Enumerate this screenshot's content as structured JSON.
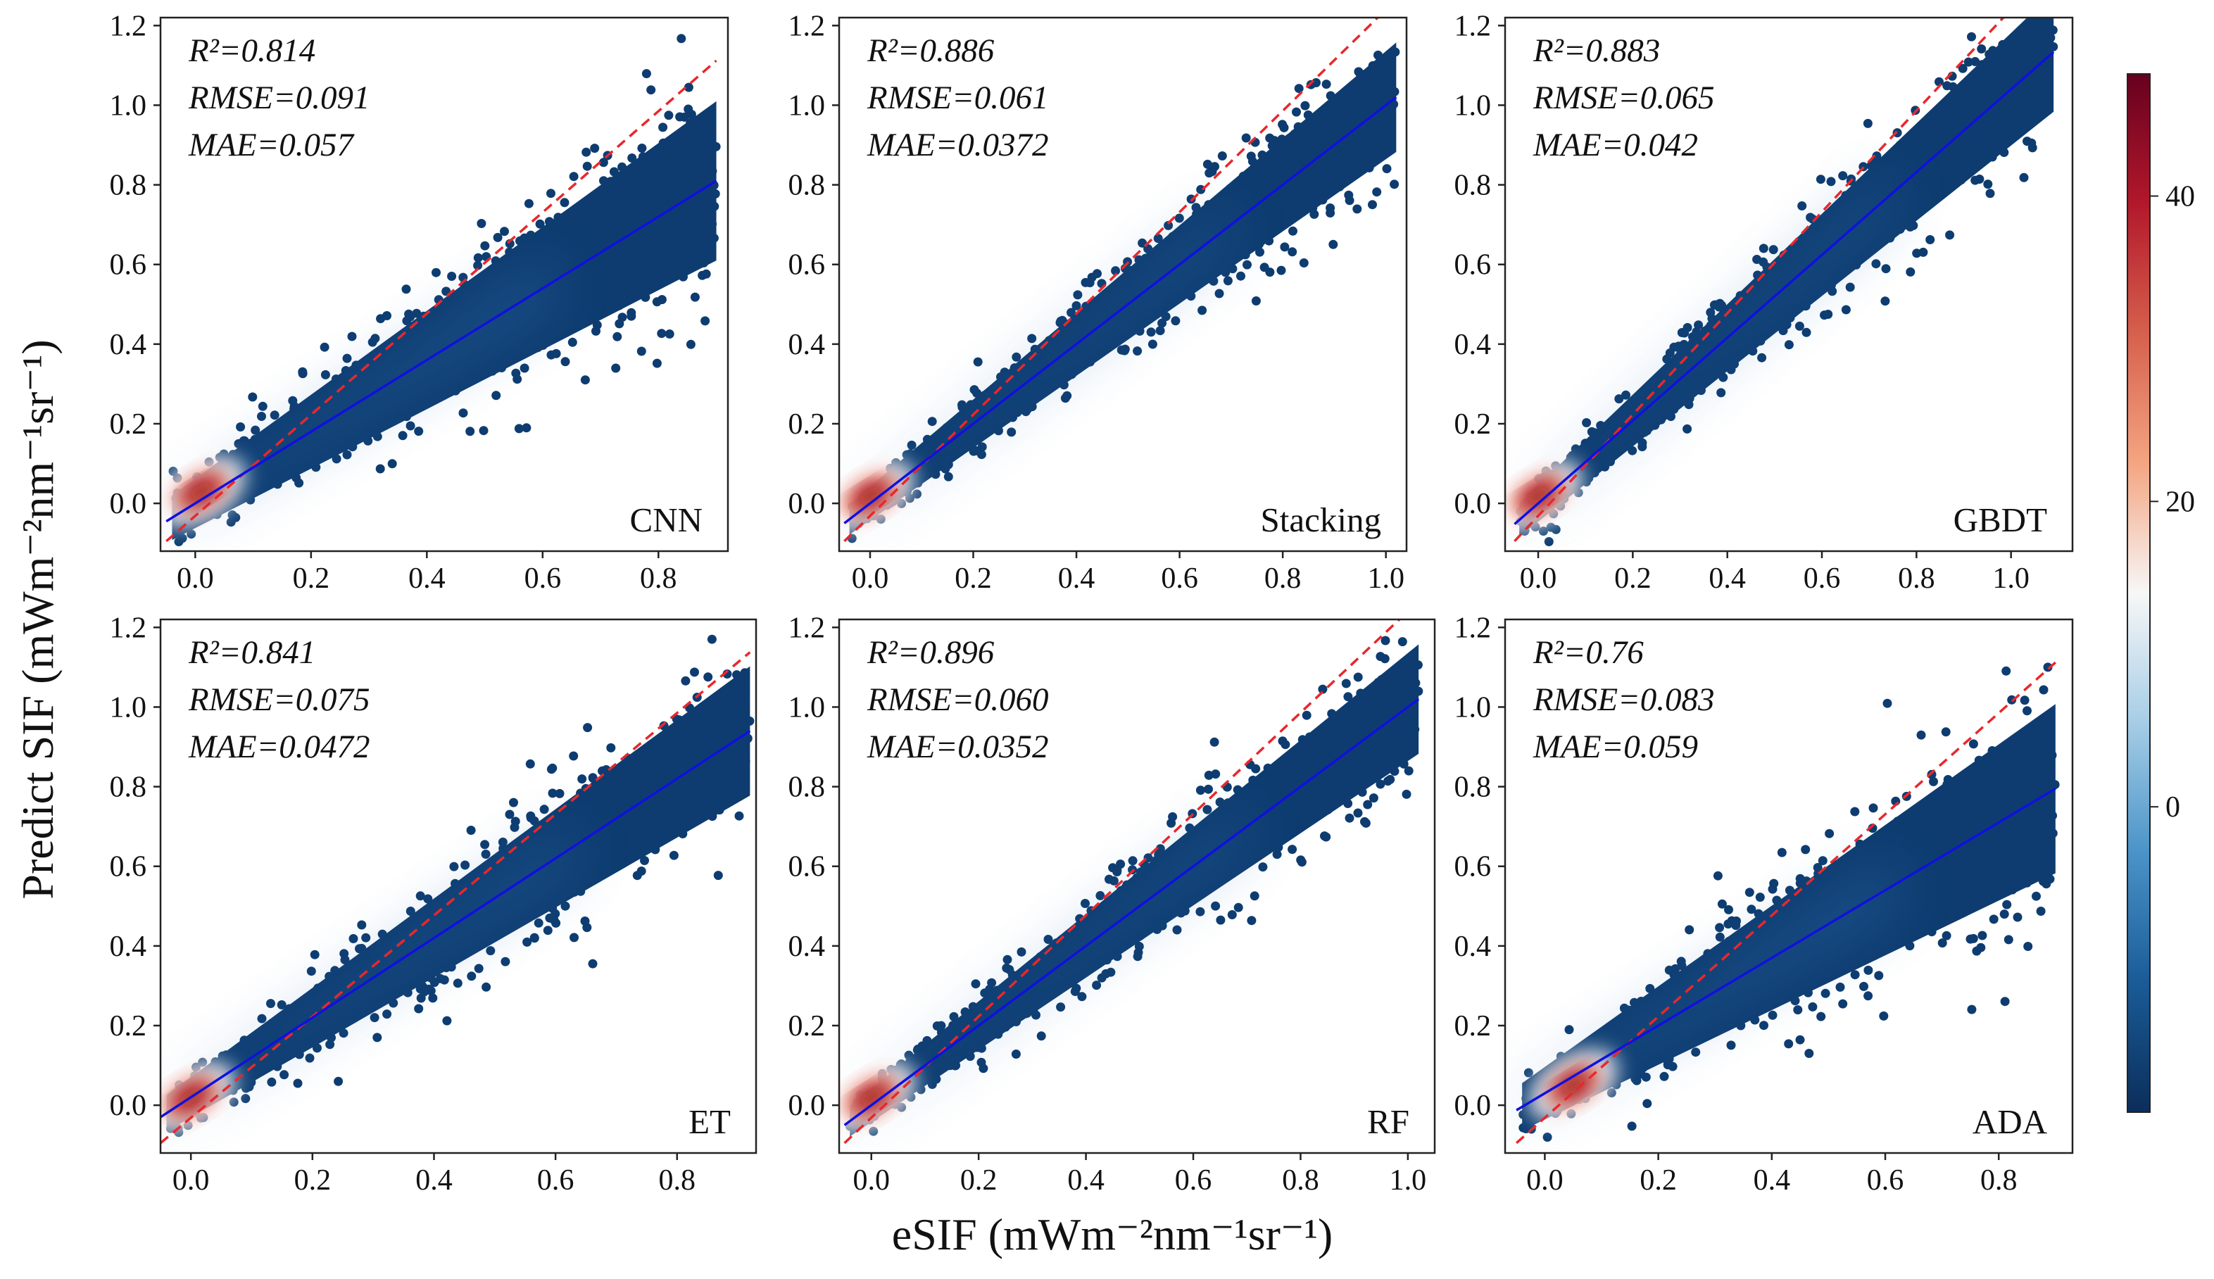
{
  "chart_data": [
    {
      "type": "scatter",
      "model": "CNN",
      "stats": {
        "r2": "R²=0.814",
        "rmse": "RMSE=0.091",
        "mae": "MAE=0.057"
      },
      "xlim": [
        -0.06,
        0.92
      ],
      "ylim": [
        -0.12,
        1.22
      ],
      "xticks": [
        0.0,
        0.2,
        0.4,
        0.6,
        0.8
      ],
      "xtick_labels": [
        "0.0",
        "0.2",
        "0.4",
        "0.6",
        "0.8"
      ],
      "yticks": [
        0.0,
        0.2,
        0.4,
        0.6,
        0.8,
        1.0,
        1.2
      ],
      "ytick_labels": [
        "0.0",
        "0.2",
        "0.4",
        "0.6",
        "0.8",
        "1.0",
        "1.2"
      ],
      "fit_line": {
        "slope": 0.9,
        "intercept": 0.0
      },
      "xmax": 0.9,
      "ymax": 1.18,
      "spread": 0.16,
      "hotspot": [
        0.01,
        0.03
      ],
      "density_max": 45
    },
    {
      "type": "scatter",
      "model": "Stacking",
      "stats": {
        "r2": "R²=0.886",
        "rmse": "RMSE=0.061",
        "mae": "MAE=0.0372"
      },
      "xlim": [
        -0.06,
        1.04
      ],
      "ylim": [
        -0.12,
        1.22
      ],
      "xticks": [
        0.0,
        0.2,
        0.4,
        0.6,
        0.8,
        1.0
      ],
      "xtick_labels": [
        "0.0",
        "0.2",
        "0.4",
        "0.6",
        "0.8",
        "1.0"
      ],
      "yticks": [
        0.0,
        0.2,
        0.4,
        0.6,
        0.8,
        1.0,
        1.2
      ],
      "ytick_labels": [
        "0.0",
        "0.2",
        "0.4",
        "0.6",
        "0.8",
        "1.0",
        "1.2"
      ],
      "fit_line": {
        "slope": 1.0,
        "intercept": 0.0
      },
      "xmax": 1.02,
      "ymax": 1.18,
      "spread": 0.11,
      "hotspot": [
        0.0,
        0.02
      ],
      "density_max": 45
    },
    {
      "type": "scatter",
      "model": "GBDT",
      "stats": {
        "r2": "R²=0.883",
        "rmse": "RMSE=0.065",
        "mae": "MAE=0.042"
      },
      "xlim": [
        -0.07,
        1.13
      ],
      "ylim": [
        -0.12,
        1.22
      ],
      "xticks": [
        0.0,
        0.2,
        0.4,
        0.6,
        0.8,
        1.0
      ],
      "xtick_labels": [
        "0.0",
        "0.2",
        "0.4",
        "0.6",
        "0.8",
        "1.0"
      ],
      "yticks": [
        0.0,
        0.2,
        0.4,
        0.6,
        0.8,
        1.0,
        1.2
      ],
      "ytick_labels": [
        "0.0",
        "0.2",
        "0.4",
        "0.6",
        "0.8",
        "1.0",
        "1.2"
      ],
      "fit_line": {
        "slope": 1.04,
        "intercept": 0.0
      },
      "xmax": 1.09,
      "ymax": 1.2,
      "spread": 0.12,
      "hotspot": [
        0.0,
        0.02
      ],
      "density_max": 45
    },
    {
      "type": "scatter",
      "model": "ET",
      "stats": {
        "r2": "R²=0.841",
        "rmse": "RMSE=0.075",
        "mae": "MAE=0.0472"
      },
      "xlim": [
        -0.05,
        0.93
      ],
      "ylim": [
        -0.12,
        1.22
      ],
      "xticks": [
        0.0,
        0.2,
        0.4,
        0.6,
        0.8
      ],
      "xtick_labels": [
        "0.0",
        "0.2",
        "0.4",
        "0.6",
        "0.8"
      ],
      "yticks": [
        0.0,
        0.2,
        0.4,
        0.6,
        0.8,
        1.0,
        1.2
      ],
      "ytick_labels": [
        "0.0",
        "0.2",
        "0.4",
        "0.6",
        "0.8",
        "1.0",
        "1.2"
      ],
      "fit_line": {
        "slope": 1.0,
        "intercept": 0.02
      },
      "xmax": 0.92,
      "ymax": 1.18,
      "spread": 0.13,
      "hotspot": [
        0.0,
        0.02
      ],
      "density_max": 45
    },
    {
      "type": "scatter",
      "model": "RF",
      "stats": {
        "r2": "R²=0.896",
        "rmse": "RMSE=0.060",
        "mae": "MAE=0.0352"
      },
      "xlim": [
        -0.06,
        1.05
      ],
      "ylim": [
        -0.12,
        1.22
      ],
      "xticks": [
        0.0,
        0.2,
        0.4,
        0.6,
        0.8,
        1.0
      ],
      "xtick_labels": [
        "0.0",
        "0.2",
        "0.4",
        "0.6",
        "0.8",
        "1.0"
      ],
      "yticks": [
        0.0,
        0.2,
        0.4,
        0.6,
        0.8,
        1.0,
        1.2
      ],
      "ytick_labels": [
        "0.0",
        "0.2",
        "0.4",
        "0.6",
        "0.8",
        "1.0",
        "1.2"
      ],
      "fit_line": {
        "slope": 1.0,
        "intercept": 0.0
      },
      "xmax": 1.02,
      "ymax": 1.18,
      "spread": 0.11,
      "hotspot": [
        0.0,
        0.02
      ],
      "density_max": 45
    },
    {
      "type": "scatter",
      "model": "ADA",
      "stats": {
        "r2": "R²=0.76",
        "rmse": "RMSE=0.083",
        "mae": "MAE=0.059"
      },
      "xlim": [
        -0.07,
        0.93
      ],
      "ylim": [
        -0.12,
        1.22
      ],
      "xticks": [
        0.0,
        0.2,
        0.4,
        0.6,
        0.8
      ],
      "xtick_labels": [
        "0.0",
        "0.2",
        "0.4",
        "0.6",
        "0.8"
      ],
      "yticks": [
        0.0,
        0.2,
        0.4,
        0.6,
        0.8,
        1.0,
        1.2
      ],
      "ytick_labels": [
        "0.0",
        "0.2",
        "0.4",
        "0.6",
        "0.8",
        "1.0",
        "1.2"
      ],
      "fit_line": {
        "slope": 0.85,
        "intercept": 0.03
      },
      "xmax": 0.9,
      "ymax": 1.18,
      "spread": 0.17,
      "hotspot": [
        0.05,
        0.05
      ],
      "density_max": 45
    }
  ],
  "axes": {
    "xlabel": "eSIF (mWm⁻²nm⁻¹sr⁻¹)",
    "ylabel": "Predict SIF (mWm⁻²nm⁻¹sr⁻¹)"
  },
  "colorbar": {
    "range": [
      -20,
      48
    ],
    "ticks": [
      0,
      20,
      40
    ],
    "tick_labels": [
      "0",
      "20",
      "40"
    ],
    "colors": [
      "#0b2e5a",
      "#1a5b97",
      "#4a93c8",
      "#a6cde6",
      "#f7f7f7",
      "#f4a582",
      "#d6604d",
      "#b2182b",
      "#67001f"
    ]
  },
  "colors": {
    "point": "#0e3c70",
    "identity_line": "#e8282c",
    "fit_line": "#1010e0"
  }
}
